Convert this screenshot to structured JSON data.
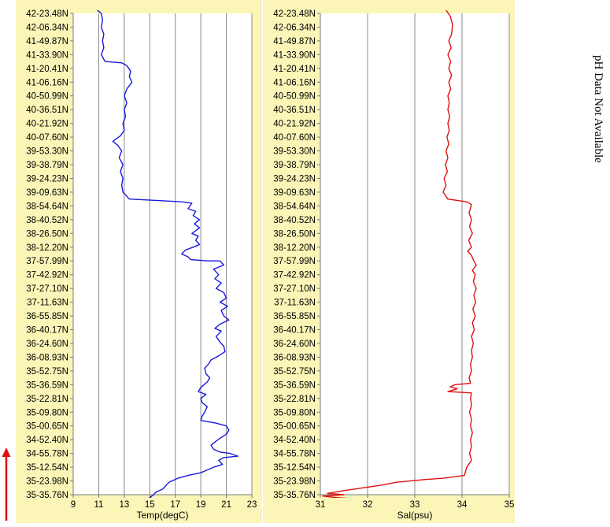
{
  "note": "pH Data Not Available",
  "colors": {
    "panel_bg": "#fbf6b8",
    "temp_line": "#1a1adc",
    "sal_line": "#e01010",
    "arrow": "#e01010",
    "grid": "#888888"
  },
  "chart_data": [
    {
      "type": "line",
      "xlabel": "Temp(degC)",
      "xlim": [
        9,
        23
      ],
      "xticks": [
        9,
        11,
        13,
        15,
        17,
        19,
        21,
        23
      ],
      "grid": "vertical",
      "y_tick_labels": [
        "42-23.48N",
        "42-06.34N",
        "41-49.87N",
        "41-33.90N",
        "41-20.41N",
        "41-06.16N",
        "40-50.99N",
        "40-36.51N",
        "40-21.92N",
        "40-07.60N",
        "39-53.30N",
        "39-38.79N",
        "39-24.23N",
        "39-09.63N",
        "38-54.64N",
        "38-40.52N",
        "38-26.50N",
        "38-12.20N",
        "37-57.99N",
        "37-42.92N",
        "37-27.10N",
        "37-11.63N",
        "36-55.85N",
        "36-40.17N",
        "36-24.60N",
        "36-08.93N",
        "35-52.75N",
        "35-36.59N",
        "35-22.81N",
        "35-09.80N",
        "35-00.65N",
        "34-52.40N",
        "34-55.78N",
        "35-12.54N",
        "35-23.98N",
        "35-35.76N"
      ],
      "series": [
        {
          "values": [
            [
              10.8,
              -0.3
            ],
            [
              11.2,
              0.0
            ],
            [
              11.3,
              0.5
            ],
            [
              11.2,
              1.0
            ],
            [
              11.4,
              1.5
            ],
            [
              11.3,
              2.0
            ],
            [
              11.4,
              2.5
            ],
            [
              11.2,
              3.0
            ],
            [
              11.5,
              3.5
            ],
            [
              12.8,
              3.6
            ],
            [
              13.2,
              3.8
            ],
            [
              13.5,
              4.2
            ],
            [
              13.4,
              4.6
            ],
            [
              13.6,
              5.0
            ],
            [
              13.2,
              5.5
            ],
            [
              13.0,
              6.0
            ],
            [
              13.2,
              6.5
            ],
            [
              13.0,
              7.0
            ],
            [
              13.1,
              7.5
            ],
            [
              12.9,
              8.0
            ],
            [
              13.0,
              8.5
            ],
            [
              12.7,
              8.9
            ],
            [
              12.1,
              9.3
            ],
            [
              12.5,
              9.6
            ],
            [
              12.8,
              10.0
            ],
            [
              12.6,
              10.5
            ],
            [
              12.9,
              11.0
            ],
            [
              12.7,
              11.5
            ],
            [
              12.9,
              12.0
            ],
            [
              12.8,
              12.5
            ],
            [
              12.9,
              13.0
            ],
            [
              13.4,
              13.5
            ],
            [
              15.5,
              13.6
            ],
            [
              17.5,
              13.7
            ],
            [
              18.3,
              13.8
            ],
            [
              18.0,
              14.2
            ],
            [
              18.6,
              14.4
            ],
            [
              18.4,
              14.7
            ],
            [
              18.9,
              15.0
            ],
            [
              18.5,
              15.3
            ],
            [
              18.9,
              15.6
            ],
            [
              18.3,
              16.0
            ],
            [
              18.8,
              16.2
            ],
            [
              18.6,
              16.5
            ],
            [
              18.9,
              16.8
            ],
            [
              18.4,
              17.0
            ],
            [
              17.8,
              17.2
            ],
            [
              17.5,
              17.5
            ],
            [
              18.0,
              17.7
            ],
            [
              18.2,
              17.9
            ],
            [
              19.5,
              18.0
            ],
            [
              20.5,
              18.0
            ],
            [
              20.8,
              18.3
            ],
            [
              20.0,
              18.6
            ],
            [
              20.4,
              19.0
            ],
            [
              20.1,
              19.3
            ],
            [
              20.6,
              19.6
            ],
            [
              20.2,
              20.0
            ],
            [
              20.8,
              20.3
            ],
            [
              21.0,
              20.7
            ],
            [
              20.5,
              21.0
            ],
            [
              21.1,
              21.3
            ],
            [
              20.6,
              21.6
            ],
            [
              20.8,
              22.0
            ],
            [
              21.2,
              22.3
            ],
            [
              20.5,
              22.6
            ],
            [
              20.1,
              22.9
            ],
            [
              20.6,
              23.1
            ],
            [
              20.2,
              23.5
            ],
            [
              20.5,
              23.9
            ],
            [
              20.8,
              24.2
            ],
            [
              20.9,
              24.6
            ],
            [
              20.4,
              24.9
            ],
            [
              19.8,
              25.2
            ],
            [
              19.6,
              25.5
            ],
            [
              19.3,
              25.8
            ],
            [
              19.4,
              26.2
            ],
            [
              19.7,
              26.5
            ],
            [
              19.5,
              26.8
            ],
            [
              19.0,
              27.2
            ],
            [
              18.8,
              27.5
            ],
            [
              19.4,
              27.7
            ],
            [
              19.0,
              28.0
            ],
            [
              19.1,
              28.3
            ],
            [
              19.5,
              28.6
            ],
            [
              19.3,
              29.0
            ],
            [
              19.1,
              29.3
            ],
            [
              19.0,
              29.6
            ],
            [
              20.2,
              29.8
            ],
            [
              21.0,
              30.0
            ],
            [
              21.2,
              30.3
            ],
            [
              21.0,
              30.6
            ],
            [
              20.5,
              30.9
            ],
            [
              20.2,
              31.1
            ],
            [
              19.8,
              31.4
            ],
            [
              20.0,
              31.7
            ],
            [
              20.5,
              31.9
            ],
            [
              21.3,
              32.0
            ],
            [
              21.9,
              32.2
            ],
            [
              20.8,
              32.3
            ],
            [
              20.4,
              32.5
            ],
            [
              20.7,
              32.8
            ],
            [
              20.0,
              33.0
            ],
            [
              19.5,
              33.2
            ],
            [
              19.0,
              33.4
            ],
            [
              18.0,
              33.6
            ],
            [
              17.2,
              33.8
            ],
            [
              16.5,
              34.1
            ],
            [
              16.2,
              34.4
            ],
            [
              16.0,
              34.6
            ],
            [
              15.5,
              34.8
            ],
            [
              15.3,
              35.0
            ],
            [
              15.0,
              35.2
            ],
            [
              15.5,
              35.4
            ],
            [
              14.7,
              35.5
            ],
            [
              15.4,
              35.7
            ],
            [
              15.2,
              35.9
            ]
          ]
        }
      ]
    },
    {
      "type": "line",
      "xlabel": "Sal(psu)",
      "xlim": [
        31,
        35
      ],
      "xticks": [
        31,
        32,
        33,
        34,
        35
      ],
      "grid": "vertical",
      "y_tick_labels": [
        "42-23.48N",
        "42-06.34N",
        "41-49.87N",
        "41-33.90N",
        "41-20.41N",
        "41-06.16N",
        "40-50.99N",
        "40-36.51N",
        "40-21.92N",
        "40-07.60N",
        "39-53.30N",
        "39-38.79N",
        "39-24.23N",
        "39-09.63N",
        "38-54.64N",
        "38-40.52N",
        "38-26.50N",
        "38-12.20N",
        "37-57.99N",
        "37-42.92N",
        "37-27.10N",
        "37-11.63N",
        "36-55.85N",
        "36-40.17N",
        "36-24.60N",
        "36-08.93N",
        "35-52.75N",
        "35-36.59N",
        "35-22.81N",
        "35-09.80N",
        "35-00.65N",
        "34-52.40N",
        "34-55.78N",
        "35-12.54N",
        "35-23.98N",
        "35-35.76N"
      ],
      "series": [
        {
          "values": [
            [
              33.65,
              -0.3
            ],
            [
              33.75,
              0.2
            ],
            [
              33.8,
              0.8
            ],
            [
              33.78,
              1.5
            ],
            [
              33.72,
              2.0
            ],
            [
              33.77,
              2.5
            ],
            [
              33.7,
              3.0
            ],
            [
              33.76,
              3.5
            ],
            [
              33.72,
              4.0
            ],
            [
              33.78,
              4.5
            ],
            [
              33.72,
              5.0
            ],
            [
              33.76,
              5.5
            ],
            [
              33.7,
              6.0
            ],
            [
              33.73,
              6.5
            ],
            [
              33.7,
              7.0
            ],
            [
              33.74,
              7.5
            ],
            [
              33.7,
              8.0
            ],
            [
              33.73,
              8.5
            ],
            [
              33.68,
              9.0
            ],
            [
              33.72,
              9.5
            ],
            [
              33.66,
              10.0
            ],
            [
              33.7,
              10.5
            ],
            [
              33.65,
              11.0
            ],
            [
              33.69,
              11.5
            ],
            [
              33.62,
              12.0
            ],
            [
              33.66,
              12.5
            ],
            [
              33.6,
              13.0
            ],
            [
              33.7,
              13.5
            ],
            [
              34.1,
              13.7
            ],
            [
              34.2,
              13.9
            ],
            [
              34.15,
              14.5
            ],
            [
              34.2,
              15.0
            ],
            [
              34.16,
              15.5
            ],
            [
              34.22,
              16.0
            ],
            [
              34.14,
              16.5
            ],
            [
              34.2,
              17.0
            ],
            [
              34.12,
              17.3
            ],
            [
              34.2,
              17.6
            ],
            [
              34.25,
              18.0
            ],
            [
              34.3,
              18.3
            ],
            [
              34.22,
              18.7
            ],
            [
              34.28,
              19.0
            ],
            [
              34.24,
              19.5
            ],
            [
              34.3,
              20.0
            ],
            [
              34.25,
              20.5
            ],
            [
              34.29,
              21.0
            ],
            [
              34.23,
              21.5
            ],
            [
              34.28,
              22.0
            ],
            [
              34.22,
              22.5
            ],
            [
              34.26,
              23.0
            ],
            [
              34.2,
              23.5
            ],
            [
              34.24,
              24.0
            ],
            [
              34.2,
              24.5
            ],
            [
              34.22,
              25.0
            ],
            [
              34.18,
              25.5
            ],
            [
              34.2,
              26.0
            ],
            [
              34.15,
              26.5
            ],
            [
              34.18,
              26.9
            ],
            [
              33.85,
              27.0
            ],
            [
              33.75,
              27.15
            ],
            [
              33.9,
              27.3
            ],
            [
              33.7,
              27.5
            ],
            [
              34.2,
              27.6
            ],
            [
              34.18,
              28.0
            ],
            [
              34.2,
              28.5
            ],
            [
              34.16,
              29.0
            ],
            [
              34.2,
              29.5
            ],
            [
              34.18,
              30.0
            ],
            [
              34.22,
              30.5
            ],
            [
              34.18,
              31.0
            ],
            [
              34.2,
              31.5
            ],
            [
              34.16,
              32.0
            ],
            [
              34.2,
              32.5
            ],
            [
              34.1,
              33.0
            ],
            [
              34.05,
              33.6
            ],
            [
              33.6,
              33.8
            ],
            [
              33.2,
              33.9
            ],
            [
              32.6,
              34.1
            ],
            [
              32.3,
              34.3
            ],
            [
              31.9,
              34.5
            ],
            [
              31.5,
              34.7
            ],
            [
              31.15,
              34.9
            ],
            [
              31.5,
              35.0
            ],
            [
              31.05,
              35.1
            ],
            [
              31.3,
              35.2
            ],
            [
              31.7,
              35.3
            ],
            [
              31.05,
              35.4
            ],
            [
              31.4,
              35.5
            ],
            [
              31.1,
              35.6
            ],
            [
              31.6,
              35.7
            ],
            [
              31.2,
              35.9
            ]
          ]
        }
      ]
    }
  ]
}
